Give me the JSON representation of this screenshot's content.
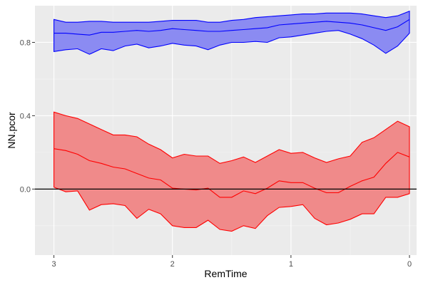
{
  "chart_data": {
    "type": "area",
    "title": "",
    "xlabel": "RemTime",
    "ylabel": "NN.pcor",
    "xlim": [
      3.16,
      -0.06
    ],
    "ylim": [
      -0.36,
      1.0
    ],
    "reversed_x": true,
    "grid": true,
    "legend": "none",
    "x_ticks": [
      3,
      2,
      1,
      0
    ],
    "x_tick_labels": [
      "3",
      "2",
      "1",
      "0"
    ],
    "y_ticks": [
      0.0,
      0.4,
      0.8
    ],
    "y_tick_labels": [
      "0.0",
      "0.4",
      "0.8"
    ],
    "hline": 0.0,
    "x": [
      3.0,
      2.9,
      2.8,
      2.7,
      2.6,
      2.5,
      2.4,
      2.3,
      2.2,
      2.1,
      2.0,
      1.9,
      1.8,
      1.7,
      1.6,
      1.5,
      1.4,
      1.3,
      1.2,
      1.1,
      1.0,
      0.9,
      0.8,
      0.7,
      0.6,
      0.5,
      0.4,
      0.3,
      0.2,
      0.1,
      0.0
    ],
    "series": [
      {
        "color": "#0000ff",
        "fill": "#8b8bf2",
        "mid": [
          0.85,
          0.85,
          0.845,
          0.84,
          0.855,
          0.855,
          0.86,
          0.865,
          0.86,
          0.865,
          0.875,
          0.87,
          0.865,
          0.86,
          0.86,
          0.865,
          0.87,
          0.875,
          0.88,
          0.895,
          0.9,
          0.905,
          0.91,
          0.915,
          0.91,
          0.905,
          0.895,
          0.88,
          0.865,
          0.885,
          0.925
        ],
        "upper": [
          0.925,
          0.91,
          0.91,
          0.915,
          0.915,
          0.91,
          0.91,
          0.91,
          0.91,
          0.915,
          0.92,
          0.92,
          0.92,
          0.91,
          0.91,
          0.92,
          0.925,
          0.935,
          0.94,
          0.945,
          0.95,
          0.955,
          0.955,
          0.96,
          0.96,
          0.96,
          0.955,
          0.945,
          0.935,
          0.945,
          0.97
        ],
        "lower": [
          0.75,
          0.76,
          0.765,
          0.735,
          0.765,
          0.755,
          0.78,
          0.79,
          0.77,
          0.78,
          0.795,
          0.785,
          0.78,
          0.76,
          0.785,
          0.8,
          0.8,
          0.805,
          0.8,
          0.825,
          0.83,
          0.84,
          0.85,
          0.86,
          0.865,
          0.845,
          0.82,
          0.785,
          0.74,
          0.78,
          0.85
        ]
      },
      {
        "color": "#ff0000",
        "fill": "#f08a8a",
        "mid": [
          0.22,
          0.21,
          0.19,
          0.155,
          0.14,
          0.12,
          0.11,
          0.085,
          0.06,
          0.05,
          0.005,
          0.0,
          -0.005,
          0.005,
          -0.045,
          -0.045,
          -0.01,
          -0.025,
          0.005,
          0.045,
          0.035,
          0.035,
          0.005,
          -0.02,
          -0.02,
          0.015,
          0.045,
          0.065,
          0.14,
          0.2,
          0.175
        ],
        "upper": [
          0.42,
          0.4,
          0.385,
          0.355,
          0.325,
          0.295,
          0.295,
          0.285,
          0.245,
          0.215,
          0.17,
          0.19,
          0.18,
          0.18,
          0.14,
          0.155,
          0.175,
          0.145,
          0.18,
          0.215,
          0.195,
          0.2,
          0.17,
          0.145,
          0.165,
          0.18,
          0.255,
          0.28,
          0.325,
          0.37,
          0.34
        ],
        "lower": [
          0.01,
          -0.015,
          -0.01,
          -0.115,
          -0.085,
          -0.08,
          -0.09,
          -0.16,
          -0.11,
          -0.135,
          -0.2,
          -0.21,
          -0.21,
          -0.17,
          -0.22,
          -0.23,
          -0.2,
          -0.215,
          -0.145,
          -0.1,
          -0.095,
          -0.085,
          -0.16,
          -0.195,
          -0.185,
          -0.165,
          -0.135,
          -0.135,
          -0.045,
          -0.045,
          -0.025
        ]
      }
    ]
  }
}
